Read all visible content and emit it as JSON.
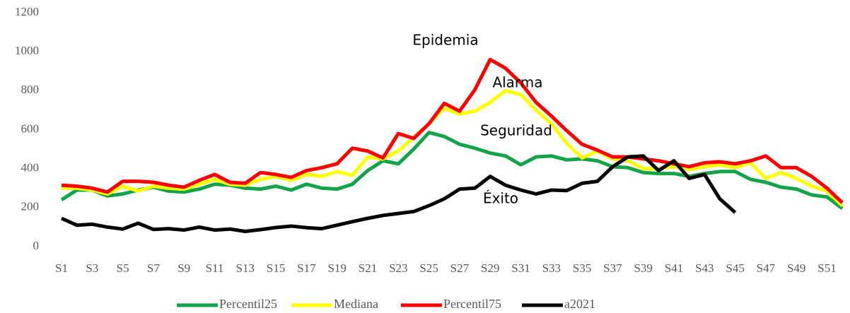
{
  "chart_data": {
    "type": "line",
    "categories": [
      "S1",
      null,
      "S3",
      null,
      "S5",
      null,
      "S7",
      null,
      "S9",
      null,
      "S11",
      null,
      "S13",
      null,
      "S15",
      null,
      "S17",
      null,
      "S19",
      null,
      "S21",
      null,
      "S23",
      null,
      "S25",
      null,
      "S27",
      null,
      "S29",
      null,
      "S31",
      null,
      "S33",
      null,
      "S35",
      null,
      "S37",
      null,
      "S39",
      null,
      "S41",
      null,
      "S43",
      null,
      "S45",
      null,
      "S47",
      null,
      "S49",
      null,
      "S51",
      null
    ],
    "series": [
      {
        "name": "Percentil25",
        "color": "#13a44a",
        "values": [
          240,
          290,
          290,
          260,
          270,
          290,
          305,
          285,
          280,
          295,
          320,
          315,
          300,
          295,
          310,
          290,
          320,
          300,
          295,
          320,
          390,
          440,
          425,
          500,
          585,
          565,
          525,
          505,
          480,
          465,
          420,
          460,
          465,
          445,
          450,
          440,
          410,
          405,
          380,
          375,
          375,
          360,
          375,
          385,
          385,
          345,
          330,
          305,
          295,
          265,
          255,
          195
        ]
      },
      {
        "name": "Mediana",
        "color": "#ffff00",
        "values": [
          300,
          300,
          290,
          270,
          310,
          285,
          310,
          300,
          295,
          320,
          345,
          320,
          315,
          345,
          360,
          340,
          370,
          360,
          385,
          365,
          460,
          450,
          490,
          560,
          630,
          710,
          680,
          695,
          740,
          800,
          780,
          700,
          630,
          530,
          455,
          490,
          450,
          440,
          400,
          400,
          410,
          395,
          410,
          420,
          405,
          430,
          350,
          380,
          350,
          310,
          285,
          210
        ]
      },
      {
        "name": "Percentil75",
        "color": "#ff0000",
        "values": [
          315,
          310,
          300,
          280,
          335,
          335,
          330,
          315,
          305,
          340,
          370,
          330,
          325,
          380,
          370,
          355,
          390,
          405,
          425,
          505,
          490,
          455,
          580,
          555,
          630,
          735,
          695,
          805,
          960,
          915,
          840,
          740,
          670,
          595,
          525,
          495,
          460,
          460,
          450,
          440,
          425,
          410,
          430,
          435,
          425,
          440,
          465,
          405,
          405,
          360,
          300,
          225
        ]
      },
      {
        "name": "a2021",
        "color": "#000000",
        "values": [
          145,
          110,
          115,
          100,
          90,
          120,
          88,
          92,
          85,
          100,
          85,
          90,
          78,
          87,
          98,
          105,
          97,
          92,
          110,
          128,
          145,
          160,
          170,
          180,
          210,
          245,
          295,
          300,
          360,
          315,
          290,
          270,
          290,
          287,
          325,
          335,
          410,
          460,
          465,
          390,
          440,
          350,
          370,
          245,
          175,
          null,
          null,
          null,
          null,
          null,
          null,
          null
        ]
      }
    ],
    "annotations": [
      "Epidemia",
      "Alarma",
      "Seguridad",
      "Éxito"
    ],
    "ylim": [
      0,
      1200
    ],
    "yticks": [
      0,
      200,
      400,
      600,
      800,
      1000,
      1200
    ],
    "grid": false,
    "legend": "bottom"
  }
}
